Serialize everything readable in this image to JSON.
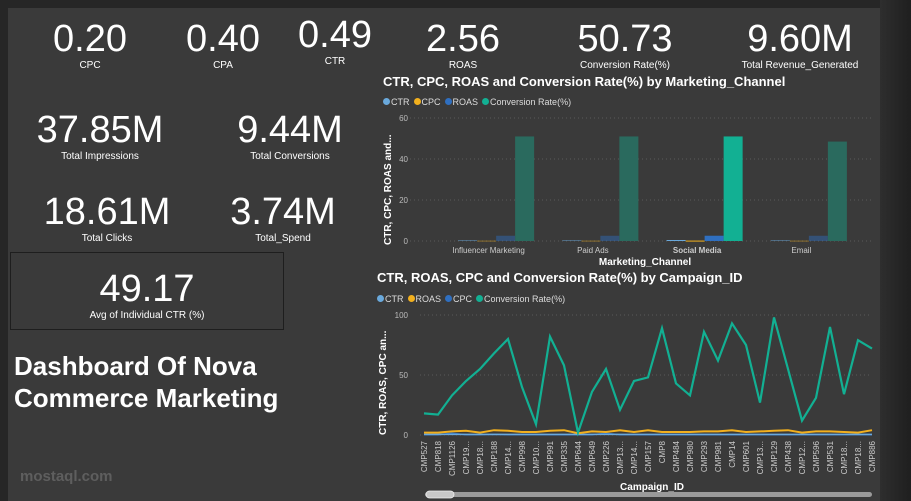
{
  "kpis": [
    {
      "value": "0.20",
      "label": "CPC"
    },
    {
      "value": "0.40",
      "label": "CPA"
    },
    {
      "value": "0.49",
      "label": "CTR"
    },
    {
      "value": "2.56",
      "label": "ROAS"
    },
    {
      "value": "50.73",
      "label": "Conversion Rate(%)"
    },
    {
      "value": "9.60M",
      "label": "Total Revenue_Generated"
    },
    {
      "value": "37.85M",
      "label": "Total Impressions"
    },
    {
      "value": "9.44M",
      "label": "Total Conversions"
    },
    {
      "value": "18.61M",
      "label": "Total Clicks"
    },
    {
      "value": "3.74M",
      "label": "Total_Spend"
    }
  ],
  "ctr_card": {
    "value": "49.17",
    "label": "Avg of Individual CTR (%)"
  },
  "dashboard_title": {
    "line1": "Dashboard Of Nova",
    "line2": "Commerce Marketing"
  },
  "watermark": "mostaql.com",
  "colors": {
    "ctr": "#6aa9dc",
    "cpc": "#f2b01e",
    "roas": "#2f6fc0",
    "conv": "#12b093",
    "conv_dim": "#2a6a5e",
    "bg": "#3a3a3a"
  },
  "chart_data": [
    {
      "type": "bar",
      "title": "CTR, CPC, ROAS and Conversion Rate(%) by Marketing_Channel",
      "xlabel": "Marketing_Channel",
      "ylabel": "CTR, CPC, ROAS and...",
      "ylim": [
        0,
        60
      ],
      "yticks": [
        "0",
        "20",
        "40",
        "60"
      ],
      "grid": true,
      "legend": "top-left",
      "highlighted": "Social Media",
      "categories": [
        "Influencer Marketing",
        "Paid Ads",
        "Social Media",
        "Email"
      ],
      "series": [
        {
          "name": "CTR",
          "values": [
            0.49,
            0.49,
            0.49,
            0.49
          ]
        },
        {
          "name": "CPC",
          "values": [
            0.2,
            0.2,
            0.2,
            0.2
          ]
        },
        {
          "name": "ROAS",
          "values": [
            2.56,
            2.55,
            2.57,
            2.55
          ]
        },
        {
          "name": "Conversion Rate(%)",
          "values": [
            51,
            51,
            51,
            48.5
          ]
        }
      ]
    },
    {
      "type": "line",
      "title": "CTR, ROAS, CPC and Conversion Rate(%) by Campaign_ID",
      "xlabel": "Campaign_ID",
      "ylabel": "CTR, ROAS, CPC an...",
      "ylim": [
        0,
        100
      ],
      "yticks": [
        "0",
        "50",
        "100"
      ],
      "grid": true,
      "legend": "top-left",
      "categories": [
        "CMP527",
        "CMP818",
        "CMP1126",
        "CMP19...",
        "CMP18...",
        "CMP188",
        "CMP14...",
        "CMP998",
        "CMP10...",
        "CMP991",
        "CMP335",
        "CMP644",
        "CMP649",
        "CMP226",
        "CMP13...",
        "CMP14...",
        "CMP157",
        "CMP8",
        "CMP484",
        "CMP980",
        "CMP293",
        "CMP981",
        "CMP14",
        "CMP601",
        "CMP13...",
        "CMP129",
        "CMP438",
        "CMP12...",
        "CMP596",
        "CMP531",
        "CMP18...",
        "CMP18...",
        "CMP886"
      ],
      "series": [
        {
          "name": "CTR",
          "values": [
            0.5,
            0.5,
            0.5,
            0.5,
            0.5,
            0.5,
            0.5,
            0.5,
            0.5,
            0.5,
            0.5,
            0.5,
            0.5,
            0.5,
            0.5,
            0.5,
            0.5,
            0.5,
            0.5,
            0.5,
            0.5,
            0.5,
            0.5,
            0.5,
            0.5,
            0.5,
            0.5,
            0.5,
            0.5,
            0.5,
            0.5,
            0.5,
            0.5
          ]
        },
        {
          "name": "ROAS",
          "values": [
            2,
            2,
            3,
            3.5,
            2,
            4,
            3.5,
            2.5,
            2.5,
            3.5,
            4,
            1.5,
            3,
            2.5,
            4,
            2.5,
            4,
            2.5,
            2.5,
            2.5,
            3,
            3,
            4,
            2.5,
            3,
            3.5,
            4,
            2,
            3,
            3,
            2.5,
            2,
            4
          ]
        },
        {
          "name": "CPC",
          "values": [
            0.2,
            0.2,
            1.5,
            0.2,
            0.2,
            0.5,
            0.2,
            0.2,
            0.2,
            0.2,
            0.2,
            0.2,
            0.2,
            1.5,
            0.2,
            0.2,
            0.2,
            0.2,
            0.2,
            0.2,
            0.2,
            0.2,
            0.2,
            0.2,
            0.2,
            0.2,
            0.2,
            0.2,
            0.2,
            0.2,
            0.2,
            0.2,
            0.2
          ]
        },
        {
          "name": "Conversion Rate(%)",
          "values": [
            18,
            17,
            33,
            45,
            55,
            68,
            80,
            40,
            9,
            82,
            58,
            2,
            36,
            55,
            21,
            45,
            48,
            89,
            43,
            33,
            86,
            62,
            93,
            75,
            27,
            98,
            55,
            12,
            31,
            90,
            34,
            79,
            72
          ]
        }
      ]
    }
  ]
}
